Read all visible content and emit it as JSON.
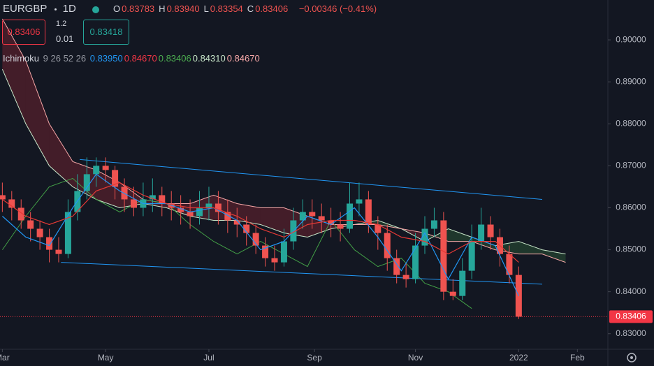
{
  "header": {
    "symbol": "EURGBP",
    "interval": "1D",
    "ohlc": [
      {
        "label": "O",
        "value": "0.83783"
      },
      {
        "label": "H",
        "value": "0.83940"
      },
      {
        "label": "L",
        "value": "0.83354"
      },
      {
        "label": "C",
        "value": "0.83406"
      }
    ],
    "change": "−0.00346 (−0.41%)",
    "sell_price": "0.83406",
    "spread_top": "1.2",
    "spread": "0.01",
    "buy_price": "0.83418"
  },
  "indicator": {
    "name": "Ichimoku",
    "params": "9 26 52 26",
    "values": [
      {
        "value": "0.83950",
        "color": "#2196f3"
      },
      {
        "value": "0.84670",
        "color": "#f23645"
      },
      {
        "value": "0.83406",
        "color": "#4caf50"
      },
      {
        "value": "0.84310",
        "color": "#c8e6c9"
      },
      {
        "value": "0.84670",
        "color": "#f7a8a8"
      }
    ]
  },
  "chart_data": {
    "type": "candlestick",
    "x": [
      0,
      4,
      8,
      12,
      16,
      20,
      24,
      28,
      32,
      36,
      40,
      44,
      48,
      52,
      56,
      60,
      64,
      68,
      72,
      76,
      80,
      84,
      88,
      92,
      96,
      100,
      104,
      108,
      112,
      116,
      120,
      124,
      128,
      132,
      136,
      140,
      144,
      148,
      152,
      156,
      160,
      164,
      168,
      172,
      176,
      180,
      184,
      188,
      192,
      196,
      200,
      204,
      208,
      212,
      216,
      220
    ],
    "open": [
      0.863,
      0.862,
      0.86,
      0.857,
      0.855,
      0.853,
      0.85,
      0.849,
      0.859,
      0.864,
      0.868,
      0.87,
      0.869,
      0.865,
      0.862,
      0.86,
      0.862,
      0.863,
      0.861,
      0.86,
      0.859,
      0.858,
      0.86,
      0.861,
      0.859,
      0.857,
      0.856,
      0.854,
      0.851,
      0.848,
      0.847,
      0.852,
      0.857,
      0.859,
      0.858,
      0.857,
      0.856,
      0.855,
      0.861,
      0.862,
      0.856,
      0.854,
      0.848,
      0.844,
      0.843,
      0.851,
      0.855,
      0.857,
      0.84,
      0.839,
      0.845,
      0.852,
      0.856,
      0.853,
      0.849,
      0.844
    ],
    "high": [
      0.866,
      0.864,
      0.862,
      0.859,
      0.857,
      0.855,
      0.853,
      0.862,
      0.868,
      0.872,
      0.872,
      0.872,
      0.87,
      0.867,
      0.865,
      0.866,
      0.867,
      0.865,
      0.864,
      0.863,
      0.862,
      0.864,
      0.865,
      0.864,
      0.862,
      0.86,
      0.858,
      0.856,
      0.853,
      0.851,
      0.855,
      0.86,
      0.862,
      0.862,
      0.861,
      0.86,
      0.859,
      0.866,
      0.866,
      0.864,
      0.858,
      0.856,
      0.85,
      0.847,
      0.854,
      0.858,
      0.86,
      0.859,
      0.843,
      0.848,
      0.856,
      0.86,
      0.858,
      0.855,
      0.851,
      0.846
    ],
    "low": [
      0.859,
      0.857,
      0.855,
      0.852,
      0.85,
      0.847,
      0.847,
      0.848,
      0.857,
      0.862,
      0.865,
      0.866,
      0.862,
      0.859,
      0.858,
      0.858,
      0.859,
      0.858,
      0.857,
      0.856,
      0.855,
      0.856,
      0.857,
      0.856,
      0.854,
      0.853,
      0.851,
      0.849,
      0.846,
      0.845,
      0.846,
      0.85,
      0.855,
      0.855,
      0.854,
      0.853,
      0.852,
      0.854,
      0.858,
      0.854,
      0.85,
      0.845,
      0.842,
      0.841,
      0.842,
      0.849,
      0.853,
      0.838,
      0.838,
      0.838,
      0.843,
      0.85,
      0.85,
      0.846,
      0.842,
      0.8335
    ],
    "close": [
      0.862,
      0.86,
      0.857,
      0.855,
      0.853,
      0.85,
      0.849,
      0.859,
      0.864,
      0.868,
      0.87,
      0.869,
      0.865,
      0.862,
      0.86,
      0.862,
      0.863,
      0.861,
      0.86,
      0.859,
      0.858,
      0.86,
      0.861,
      0.859,
      0.857,
      0.856,
      0.854,
      0.851,
      0.848,
      0.847,
      0.852,
      0.857,
      0.859,
      0.858,
      0.857,
      0.856,
      0.855,
      0.861,
      0.862,
      0.856,
      0.854,
      0.848,
      0.844,
      0.843,
      0.851,
      0.855,
      0.857,
      0.84,
      0.839,
      0.845,
      0.852,
      0.856,
      0.853,
      0.849,
      0.844,
      0.83406
    ],
    "up_color": "#26a69a",
    "down_color": "#ef5350",
    "conversion_line": {
      "color": "#2196f3",
      "x": [
        0,
        10,
        20,
        30,
        40,
        50,
        60,
        70,
        80,
        90,
        100,
        110,
        120,
        130,
        140,
        150,
        160,
        170,
        180,
        190,
        200,
        210,
        220
      ],
      "values": [
        0.858,
        0.853,
        0.851,
        0.86,
        0.868,
        0.864,
        0.861,
        0.861,
        0.859,
        0.86,
        0.857,
        0.85,
        0.852,
        0.858,
        0.856,
        0.86,
        0.853,
        0.845,
        0.854,
        0.843,
        0.853,
        0.851,
        0.839
      ]
    },
    "base_line": {
      "color": "#e53935",
      "x": [
        0,
        10,
        20,
        30,
        40,
        50,
        60,
        70,
        80,
        90,
        100,
        110,
        120,
        130,
        140,
        150,
        160,
        170,
        180,
        190,
        200,
        210,
        220
      ],
      "values": [
        0.862,
        0.858,
        0.856,
        0.858,
        0.864,
        0.866,
        0.863,
        0.861,
        0.86,
        0.86,
        0.858,
        0.855,
        0.853,
        0.856,
        0.857,
        0.857,
        0.856,
        0.853,
        0.852,
        0.849,
        0.852,
        0.852,
        0.847
      ]
    },
    "lagging_span": {
      "color": "#43a047",
      "x": [
        0,
        10,
        20,
        30,
        40,
        50,
        60,
        70,
        80,
        90,
        100,
        110,
        120,
        130,
        140,
        150,
        160,
        170,
        180,
        190,
        200
      ],
      "values": [
        0.85,
        0.858,
        0.865,
        0.867,
        0.862,
        0.859,
        0.862,
        0.861,
        0.856,
        0.852,
        0.849,
        0.852,
        0.849,
        0.846,
        0.857,
        0.85,
        0.846,
        0.848,
        0.842,
        0.84,
        0.836
      ]
    },
    "leading_span_a": {
      "color": "#c8e6c9",
      "x": [
        0,
        10,
        20,
        30,
        40,
        50,
        60,
        70,
        80,
        90,
        100,
        110,
        120,
        130,
        140,
        150,
        160,
        170,
        180,
        190,
        200,
        210,
        220,
        230,
        240
      ],
      "values": [
        0.893,
        0.88,
        0.87,
        0.865,
        0.862,
        0.86,
        0.861,
        0.86,
        0.858,
        0.857,
        0.857,
        0.856,
        0.854,
        0.853,
        0.855,
        0.856,
        0.857,
        0.855,
        0.852,
        0.855,
        0.853,
        0.851,
        0.852,
        0.85,
        0.849
      ]
    },
    "leading_span_b": {
      "color": "#f7a8a8",
      "x": [
        0,
        10,
        20,
        30,
        40,
        50,
        60,
        70,
        80,
        90,
        100,
        110,
        120,
        130,
        140,
        150,
        160,
        170,
        180,
        190,
        200,
        210,
        220,
        230,
        240
      ],
      "values": [
        0.905,
        0.895,
        0.88,
        0.871,
        0.869,
        0.866,
        0.862,
        0.861,
        0.861,
        0.863,
        0.861,
        0.86,
        0.86,
        0.858,
        0.856,
        0.856,
        0.856,
        0.855,
        0.854,
        0.852,
        0.852,
        0.85,
        0.849,
        0.849,
        0.847
      ]
    },
    "cloud_colors": {
      "bearish": "rgba(242,54,69,0.22)",
      "bullish": "rgba(76,175,80,0.22)"
    },
    "trend_lines": [
      {
        "color": "#2196f3",
        "x": [
          33,
          230
        ],
        "values": [
          0.8715,
          0.862
        ]
      },
      {
        "color": "#2196f3",
        "x": [
          25,
          230
        ],
        "values": [
          0.847,
          0.8418
        ]
      }
    ],
    "last_price": {
      "value": 0.83406,
      "label": "0.83406",
      "color": "#f23645"
    },
    "xlim": [
      -1,
      258
    ],
    "xticks": [
      {
        "value": 0,
        "label": "Mar"
      },
      {
        "value": 44,
        "label": "May"
      },
      {
        "value": 88,
        "label": "Jul"
      },
      {
        "value": 133,
        "label": "Sep"
      },
      {
        "value": 176,
        "label": "Nov"
      },
      {
        "value": 220,
        "label": "2022"
      },
      {
        "value": 245,
        "label": "Feb"
      }
    ],
    "ylim": [
      0.8263,
      0.9095
    ],
    "yticks": [
      {
        "value": 0.83,
        "label": "0.83000"
      },
      {
        "value": 0.84,
        "label": "0.84000"
      },
      {
        "value": 0.85,
        "label": "0.85000"
      },
      {
        "value": 0.86,
        "label": "0.86000"
      },
      {
        "value": 0.87,
        "label": "0.87000"
      },
      {
        "value": 0.88,
        "label": "0.88000"
      },
      {
        "value": 0.89,
        "label": "0.89000"
      },
      {
        "value": 0.9,
        "label": "0.90000"
      }
    ],
    "grid": false
  }
}
